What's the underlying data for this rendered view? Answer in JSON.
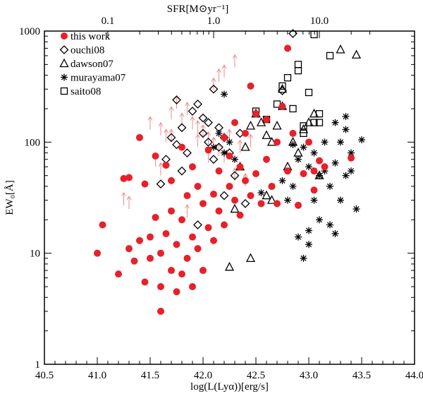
{
  "chart_data": {
    "type": "scatter",
    "title": "",
    "xlabel": "log(L(Lyα))[erg/s]",
    "ylabel": "EW₀[Å]",
    "top_xlabel": "SFR[M⊙yr⁻¹]",
    "xlim": [
      40.5,
      44.0
    ],
    "ylim": [
      1,
      1000
    ],
    "yscale": "log",
    "x_ticks": [
      "40.5",
      "41.0",
      "41.5",
      "42.0",
      "42.5",
      "43.0",
      "43.5",
      "44.0"
    ],
    "y_ticks": [
      "1",
      "10",
      "100",
      "1000"
    ],
    "top_ticks": [
      "0.1",
      "1.0",
      "10.0"
    ],
    "top_tick_positions_logL": [
      41.1,
      42.1,
      43.1
    ],
    "legend_position": "top-left",
    "colors": {
      "this_work": "#e8202a",
      "others": "#000000",
      "arrows": "#f08a8a"
    },
    "series": [
      {
        "name": "this work",
        "marker": "filled-circle",
        "points": [
          [
            41.0,
            10
          ],
          [
            41.05,
            18
          ],
          [
            41.2,
            6.5
          ],
          [
            41.25,
            47
          ],
          [
            41.3,
            11
          ],
          [
            41.3,
            48
          ],
          [
            41.35,
            8.5
          ],
          [
            41.4,
            110
          ],
          [
            41.4,
            13
          ],
          [
            41.45,
            42
          ],
          [
            41.45,
            5.5
          ],
          [
            41.5,
            9
          ],
          [
            41.5,
            14
          ],
          [
            41.55,
            21
          ],
          [
            41.55,
            75
          ],
          [
            41.6,
            3
          ],
          [
            41.6,
            5
          ],
          [
            41.6,
            10
          ],
          [
            41.65,
            15
          ],
          [
            41.65,
            62
          ],
          [
            41.7,
            7
          ],
          [
            41.7,
            24
          ],
          [
            41.7,
            45
          ],
          [
            41.75,
            4.5
          ],
          [
            41.75,
            12
          ],
          [
            41.8,
            6.5
          ],
          [
            41.8,
            20
          ],
          [
            41.8,
            90
          ],
          [
            41.85,
            9
          ],
          [
            41.85,
            33
          ],
          [
            41.9,
            5
          ],
          [
            41.9,
            14
          ],
          [
            41.9,
            60
          ],
          [
            41.95,
            11
          ],
          [
            41.95,
            40
          ],
          [
            42.0,
            7
          ],
          [
            42.0,
            28
          ],
          [
            42.05,
            17
          ],
          [
            42.05,
            85
          ],
          [
            42.1,
            13
          ],
          [
            42.1,
            34
          ],
          [
            42.15,
            24
          ],
          [
            42.15,
            55
          ],
          [
            42.2,
            110
          ],
          [
            42.2,
            18
          ],
          [
            42.25,
            40
          ],
          [
            42.25,
            75
          ],
          [
            42.3,
            30
          ],
          [
            42.3,
            150
          ],
          [
            42.35,
            22
          ],
          [
            42.35,
            60
          ],
          [
            42.4,
            45
          ],
          [
            42.4,
            120
          ],
          [
            42.45,
            320
          ],
          [
            42.45,
            33
          ],
          [
            42.5,
            52
          ],
          [
            42.5,
            180
          ],
          [
            42.55,
            28
          ],
          [
            42.6,
            70
          ],
          [
            42.6,
            160
          ],
          [
            42.65,
            40
          ],
          [
            42.7,
            100
          ],
          [
            42.7,
            28
          ],
          [
            42.75,
            210
          ],
          [
            42.8,
            55
          ],
          [
            42.8,
            700
          ],
          [
            42.85,
            120
          ],
          [
            42.9,
            27
          ],
          [
            42.95,
            52
          ],
          [
            43.0,
            100
          ],
          [
            43.05,
            37
          ],
          [
            43.05,
            55
          ],
          [
            43.1,
            68
          ],
          [
            43.15,
            60
          ],
          [
            43.4,
            72
          ]
        ]
      },
      {
        "name": "ouchi08",
        "marker": "diamond",
        "points": [
          [
            41.6,
            42
          ],
          [
            41.65,
            70
          ],
          [
            41.7,
            110
          ],
          [
            41.75,
            95
          ],
          [
            41.8,
            135
          ],
          [
            41.85,
            80
          ],
          [
            41.9,
            190
          ],
          [
            41.95,
            220
          ],
          [
            42.0,
            120
          ],
          [
            42.0,
            165
          ],
          [
            42.05,
            100
          ],
          [
            42.05,
            150
          ],
          [
            42.1,
            70
          ],
          [
            42.1,
            300
          ],
          [
            42.15,
            135
          ],
          [
            42.15,
            90
          ],
          [
            42.2,
            110
          ],
          [
            42.25,
            80
          ],
          [
            42.3,
            50
          ],
          [
            42.35,
            120
          ],
          [
            41.95,
            18
          ],
          [
            42.2,
            33
          ],
          [
            42.4,
            28
          ],
          [
            42.75,
            290
          ],
          [
            42.85,
            950
          ],
          [
            41.8,
            55
          ],
          [
            41.75,
            240
          ]
        ]
      },
      {
        "name": "dawson07",
        "marker": "triangle",
        "points": [
          [
            42.3,
            25
          ],
          [
            42.35,
            60
          ],
          [
            42.4,
            90
          ],
          [
            42.45,
            140
          ],
          [
            42.5,
            180
          ],
          [
            42.55,
            150
          ],
          [
            42.6,
            115
          ],
          [
            42.65,
            100
          ],
          [
            42.7,
            140
          ],
          [
            42.75,
            300
          ],
          [
            42.75,
            210
          ],
          [
            42.8,
            60
          ],
          [
            42.85,
            100
          ],
          [
            42.9,
            80
          ],
          [
            42.95,
            130
          ],
          [
            43.0,
            150
          ],
          [
            43.05,
            180
          ],
          [
            43.1,
            50
          ],
          [
            43.3,
            680
          ],
          [
            43.45,
            610
          ],
          [
            42.25,
            7.5
          ],
          [
            42.45,
            9
          ],
          [
            42.6,
            33
          ],
          [
            42.65,
            30
          ]
        ]
      },
      {
        "name": "murayama07",
        "marker": "asterisk",
        "points": [
          [
            42.1,
            90
          ],
          [
            42.15,
            120
          ],
          [
            42.2,
            80
          ],
          [
            42.25,
            100
          ],
          [
            42.3,
            70
          ],
          [
            42.2,
            270
          ],
          [
            42.55,
            35
          ],
          [
            42.65,
            40
          ],
          [
            42.75,
            45
          ],
          [
            42.8,
            30
          ],
          [
            42.85,
            40
          ],
          [
            42.9,
            70
          ],
          [
            42.95,
            90
          ],
          [
            43.0,
            60
          ],
          [
            43.0,
            12
          ],
          [
            43.05,
            80
          ],
          [
            43.05,
            30
          ],
          [
            43.1,
            50
          ],
          [
            43.1,
            20
          ],
          [
            43.15,
            100
          ],
          [
            43.2,
            40
          ],
          [
            43.2,
            18
          ],
          [
            43.25,
            150
          ],
          [
            43.25,
            65
          ],
          [
            43.3,
            100
          ],
          [
            43.3,
            30
          ],
          [
            43.35,
            50
          ],
          [
            43.35,
            170
          ],
          [
            43.4,
            80
          ],
          [
            43.45,
            25
          ],
          [
            43.5,
            105
          ],
          [
            42.9,
            14
          ],
          [
            43.0,
            16
          ],
          [
            42.95,
            9
          ],
          [
            43.25,
            15
          ],
          [
            43.15,
            55
          ],
          [
            42.85,
            95
          ],
          [
            43.4,
            55
          ],
          [
            43.35,
            130
          ]
        ]
      },
      {
        "name": "saito08",
        "marker": "square",
        "points": [
          [
            42.5,
            190
          ],
          [
            42.6,
            160
          ],
          [
            42.7,
            220
          ],
          [
            42.75,
            320
          ],
          [
            42.8,
            380
          ],
          [
            42.85,
            200
          ],
          [
            42.9,
            440
          ],
          [
            42.95,
            140
          ],
          [
            43.0,
            280
          ],
          [
            43.05,
            150
          ],
          [
            43.1,
            180
          ],
          [
            43.1,
            150
          ],
          [
            43.2,
            600
          ],
          [
            43.05,
            930
          ],
          [
            42.9,
            500
          ],
          [
            42.95,
            120
          ]
        ]
      }
    ],
    "lower_limits": {
      "name": "upper-limit arrows",
      "marker": "up-arrow",
      "points": [
        [
          41.25,
          27
        ],
        [
          41.3,
          25
        ],
        [
          41.5,
          130
        ],
        [
          41.6,
          115
        ],
        [
          41.65,
          100
        ],
        [
          41.7,
          160
        ],
        [
          41.75,
          200
        ],
        [
          41.8,
          140
        ],
        [
          41.85,
          175
        ],
        [
          41.9,
          130
        ],
        [
          41.95,
          120
        ],
        [
          42.0,
          110
        ],
        [
          42.05,
          95
        ],
        [
          42.1,
          85
        ],
        [
          42.15,
          75
        ],
        [
          42.2,
          65
        ],
        [
          42.25,
          100
        ],
        [
          42.3,
          45
        ],
        [
          42.4,
          40
        ],
        [
          42.1,
          290
        ],
        [
          42.15,
          350
        ],
        [
          42.2,
          380
        ],
        [
          42.3,
          470
        ],
        [
          41.85,
          21
        ],
        [
          41.95,
          90
        ],
        [
          42.05,
          65
        ],
        [
          41.7,
          100
        ],
        [
          41.55,
          60
        ],
        [
          41.6,
          50
        ],
        [
          42.35,
          80
        ],
        [
          42.45,
          90
        ]
      ]
    }
  }
}
